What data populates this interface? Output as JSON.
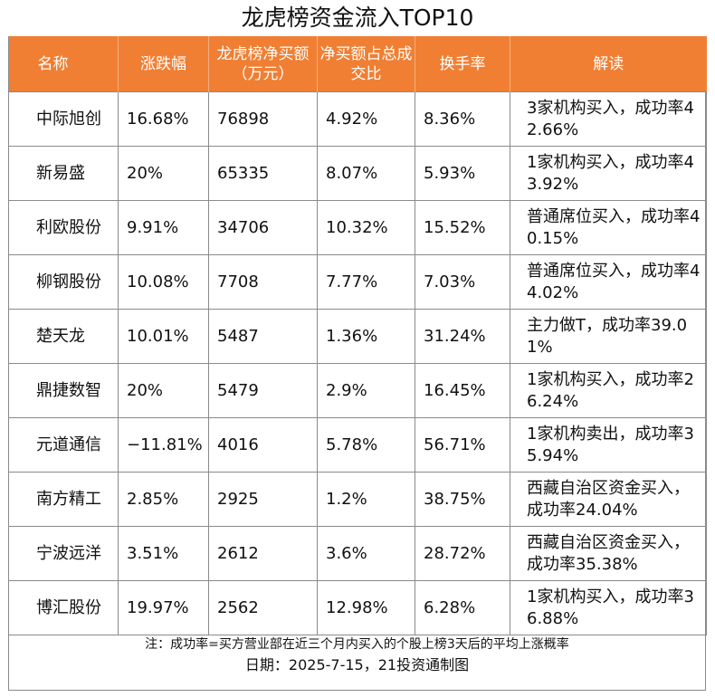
{
  "title": "龙虎榜资金流入TOP10",
  "colors": {
    "header_bg": "#f07f33",
    "border": "#8a8a8a"
  },
  "headers": [
    "名称",
    "涨跌幅",
    "龙虎榜净买额（万元）",
    "净买额占总成交比",
    "换手率",
    "解读"
  ],
  "rows": [
    {
      "name": "中际旭创",
      "change": "16.68%",
      "net_buy": "76898",
      "ratio": "4.92%",
      "turnover": "8.36%",
      "note": "3家机构买入，成功率42.66%"
    },
    {
      "name": "新易盛",
      "change": "20%",
      "net_buy": "65335",
      "ratio": "8.07%",
      "turnover": "5.93%",
      "note": "1家机构买入，成功率43.92%"
    },
    {
      "name": "利欧股份",
      "change": "9.91%",
      "net_buy": "34706",
      "ratio": "10.32%",
      "turnover": "15.52%",
      "note": "普通席位买入，成功率40.15%"
    },
    {
      "name": "柳钢股份",
      "change": "10.08%",
      "net_buy": "7708",
      "ratio": "7.77%",
      "turnover": "7.03%",
      "note": "普通席位买入，成功率44.02%"
    },
    {
      "name": "楚天龙",
      "change": "10.01%",
      "net_buy": "5487",
      "ratio": "1.36%",
      "turnover": "31.24%",
      "note": "主力做T，成功率39.01%"
    },
    {
      "name": "鼎捷数智",
      "change": "20%",
      "net_buy": "5479",
      "ratio": "2.9%",
      "turnover": "16.45%",
      "note": "1家机构买入，成功率26.24%"
    },
    {
      "name": "元道通信",
      "change": "−11.81%",
      "net_buy": "4016",
      "ratio": "5.78%",
      "turnover": "56.71%",
      "note": "1家机构卖出，成功率35.94%"
    },
    {
      "name": "南方精工",
      "change": "2.85%",
      "net_buy": "2925",
      "ratio": "1.2%",
      "turnover": "38.75%",
      "note": "西藏自治区资金买入，成功率24.04%"
    },
    {
      "name": "宁波远洋",
      "change": "3.51%",
      "net_buy": "2612",
      "ratio": "3.6%",
      "turnover": "28.72%",
      "note": "西藏自治区资金买入，成功率35.38%"
    },
    {
      "name": "博汇股份",
      "change": "19.97%",
      "net_buy": "2562",
      "ratio": "12.98%",
      "turnover": "6.28%",
      "note": "1家机构买入，成功率36.88%"
    }
  ],
  "footnote": "注：成功率=买方营业部在近三个月内买入的个股上榜3天后的平均上涨概率",
  "date_line": "日期：2025-7-15，21投资通制图"
}
